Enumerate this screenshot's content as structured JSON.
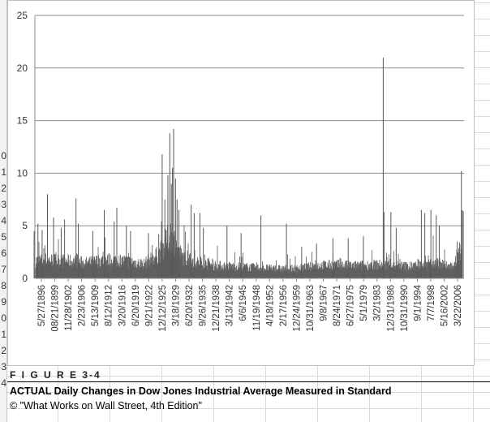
{
  "spreadsheet": {
    "row_numbers": [
      "0",
      "1",
      "2",
      "3",
      "4",
      "5",
      "6",
      "7",
      "8",
      "9",
      "0",
      "1",
      "2",
      "3",
      "4"
    ]
  },
  "figure": {
    "label": "F I G U R E 3-4",
    "title": "ACTUAL Daily Changes in Dow Jones Industrial Average Measured in Standard",
    "source": "© \"What Works on Wall Street, 4th Edition\""
  },
  "chart_data": {
    "type": "area",
    "title": "",
    "xlabel": "",
    "ylabel": "",
    "ylim": [
      0,
      25
    ],
    "yticks": [
      0,
      5,
      10,
      15,
      20,
      25
    ],
    "grid": true,
    "legend": "none",
    "color": "#595959",
    "x_tick_labels": [
      "5/27/1896",
      "08/21/1899",
      "11/28/1902",
      "2/23/1906",
      "5/13/1909",
      "8/12/1912",
      "3/20/1916",
      "6/20/1919",
      "9/21/1922",
      "12/12/1925",
      "3/18/1929",
      "6/20/1932",
      "9/26/1935",
      "12/21/1938",
      "3/13/1942",
      "6/6/1945",
      "11/19/1948",
      "4/18/1952",
      "2/17/1956",
      "12/24/1959",
      "10/31/1963",
      "9/8/1967",
      "8/24/1971",
      "6/27/1975",
      "5/1/1979",
      "3/2/1983",
      "12/31/1986",
      "10/31/1990",
      "9/1/1994",
      "7/7/1998",
      "5/16/2002",
      "3/22/2006"
    ],
    "x_range": [
      "5/27/1896",
      "12/31/2008"
    ],
    "baseline_band": [
      [
        1896,
        1.8
      ],
      [
        1900,
        1.9
      ],
      [
        1905,
        1.8
      ],
      [
        1910,
        1.6
      ],
      [
        1915,
        1.9
      ],
      [
        1920,
        1.8
      ],
      [
        1925,
        1.5
      ],
      [
        1929,
        2.5
      ],
      [
        1932,
        4.5
      ],
      [
        1935,
        2.2
      ],
      [
        1940,
        1.5
      ],
      [
        1945,
        1.3
      ],
      [
        1950,
        1.2
      ],
      [
        1955,
        1.1
      ],
      [
        1960,
        1.0
      ],
      [
        1965,
        1.0
      ],
      [
        1970,
        1.3
      ],
      [
        1975,
        1.4
      ],
      [
        1980,
        1.3
      ],
      [
        1985,
        1.4
      ],
      [
        1990,
        1.4
      ],
      [
        1995,
        1.2
      ],
      [
        2000,
        1.8
      ],
      [
        2003,
        1.5
      ],
      [
        2006,
        1.1
      ],
      [
        2008,
        3.0
      ]
    ],
    "spikes": [
      [
        1896.2,
        4.5
      ],
      [
        1897.2,
        5.2
      ],
      [
        1898.3,
        4.6
      ],
      [
        1899.7,
        8.0
      ],
      [
        1901.3,
        5.8
      ],
      [
        1903.3,
        4.8
      ],
      [
        1904.2,
        5.6
      ],
      [
        1907.2,
        7.6
      ],
      [
        1907.8,
        5.2
      ],
      [
        1911.6,
        4.5
      ],
      [
        1914.6,
        6.5
      ],
      [
        1917.2,
        5.4
      ],
      [
        1917.9,
        6.7
      ],
      [
        1920.4,
        5.0
      ],
      [
        1921.5,
        4.5
      ],
      [
        1926.2,
        4.3
      ],
      [
        1928.9,
        4.2
      ],
      [
        1929.8,
        11.8
      ],
      [
        1930.5,
        7.5
      ],
      [
        1931.3,
        9.8
      ],
      [
        1931.8,
        13.8
      ],
      [
        1932.2,
        9.0
      ],
      [
        1932.5,
        10.5
      ],
      [
        1932.8,
        14.2
      ],
      [
        1933.3,
        9.5
      ],
      [
        1933.7,
        7.5
      ],
      [
        1934.2,
        6.5
      ],
      [
        1937.4,
        7.0
      ],
      [
        1938.2,
        6.2
      ],
      [
        1939.7,
        6.2
      ],
      [
        1940.6,
        4.8
      ],
      [
        1946.8,
        5.0
      ],
      [
        1950.5,
        4.3
      ],
      [
        1955.7,
        6.0
      ],
      [
        1962.4,
        5.2
      ],
      [
        1966.4,
        3.0
      ],
      [
        1970.3,
        3.3
      ],
      [
        1974.6,
        3.8
      ],
      [
        1978.6,
        3.8
      ],
      [
        1982.6,
        4.0
      ],
      [
        1987.8,
        21.0
      ],
      [
        1988.0,
        6.3
      ],
      [
        1989.8,
        6.3
      ],
      [
        1991.2,
        4.8
      ],
      [
        1997.8,
        6.5
      ],
      [
        1998.7,
        6.2
      ],
      [
        2000.3,
        6.5
      ],
      [
        2001.7,
        6.0
      ],
      [
        2002.5,
        5.0
      ],
      [
        2007.2,
        3.5
      ],
      [
        2008.3,
        10.2
      ],
      [
        2008.5,
        6.5
      ],
      [
        2008.8,
        6.4
      ]
    ]
  }
}
